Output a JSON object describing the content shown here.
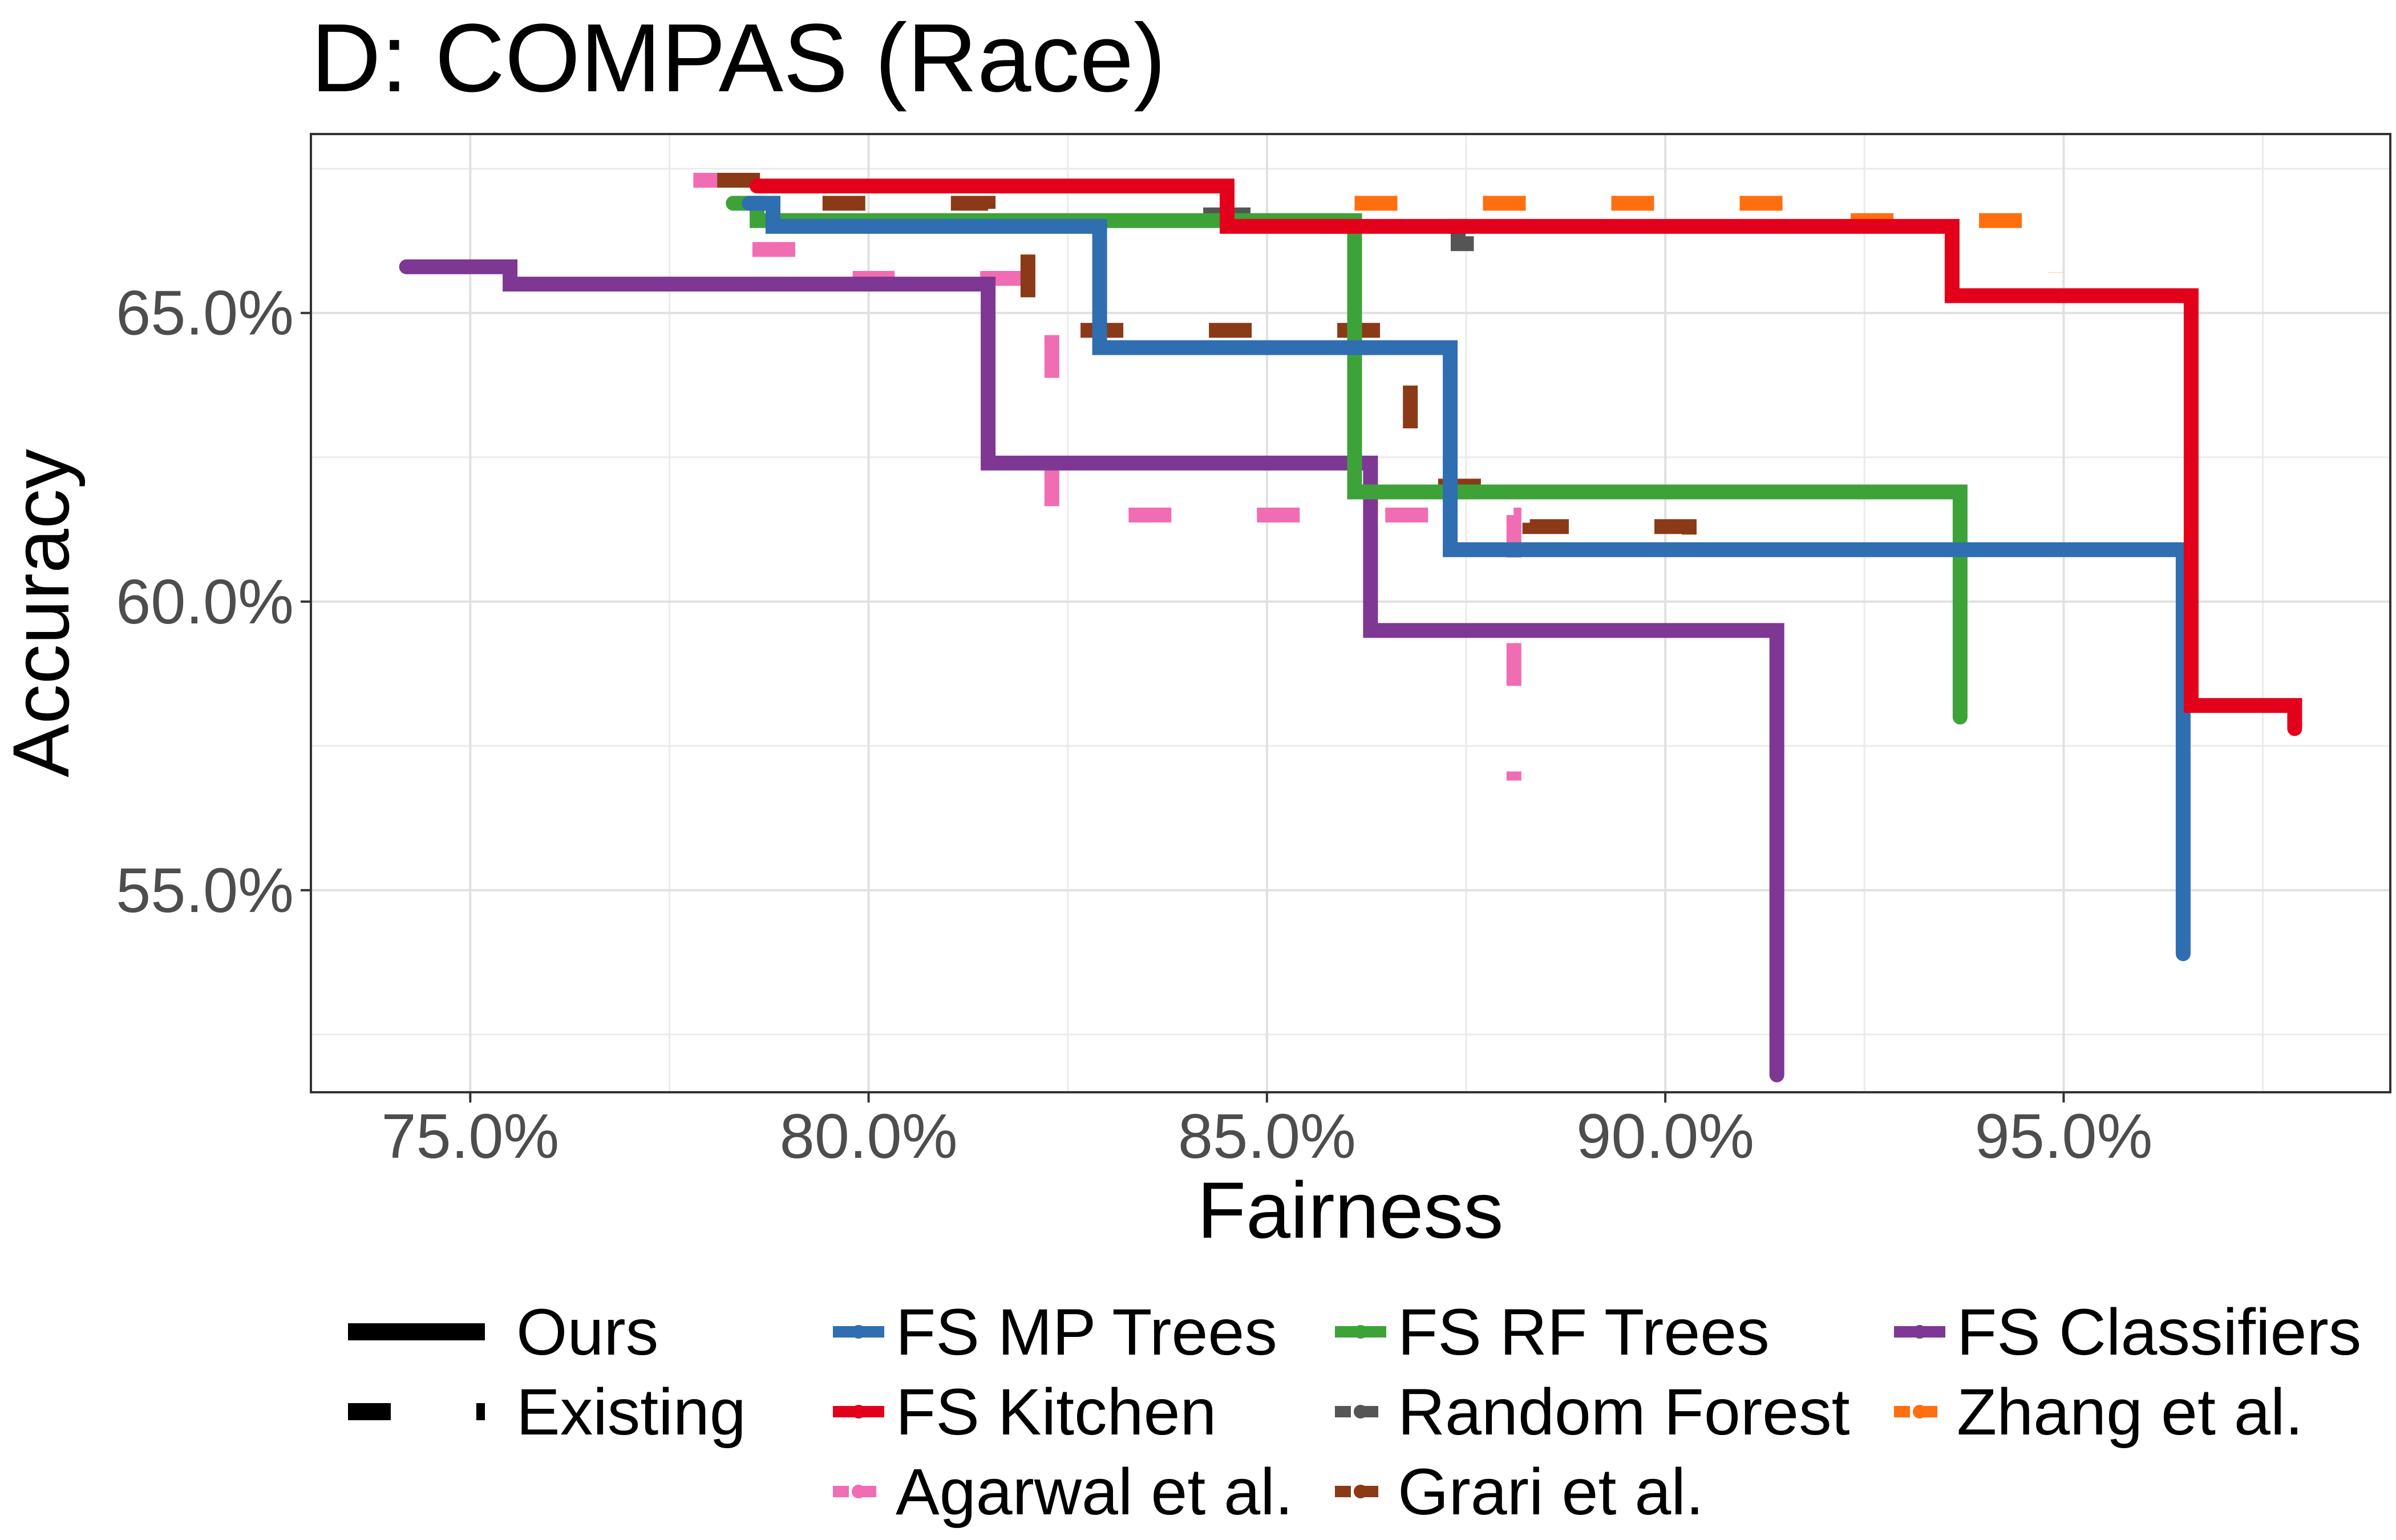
{
  "title": "D: COMPAS (Race)",
  "chart_data": {
    "type": "line",
    "step": true,
    "xlabel": "Fairness",
    "ylabel": "Accuracy",
    "xlim": [
      73.0,
      99.1
    ],
    "ylim": [
      51.5,
      68.1
    ],
    "x_ticks": [
      75,
      80,
      85,
      90,
      95
    ],
    "x_tick_labels": [
      "75.0%",
      "80.0%",
      "85.0%",
      "90.0%",
      "95.0%"
    ],
    "y_ticks": [
      55,
      60,
      65
    ],
    "y_tick_labels": [
      "55.0%",
      "60.0%",
      "65.0%"
    ],
    "grid": true,
    "legend_position": "bottom",
    "linetype_legend": [
      {
        "label": "Ours",
        "style": "solid"
      },
      {
        "label": "Existing",
        "style": "dashed"
      }
    ],
    "series": [
      {
        "name": "FS MP Trees",
        "color": "#2f6eb0",
        "style": "solid",
        "points": [
          [
            78.5,
            66.9
          ],
          [
            78.8,
            66.9
          ],
          [
            78.8,
            66.5
          ],
          [
            82.9,
            66.5
          ],
          [
            82.9,
            64.4
          ],
          [
            87.3,
            64.4
          ],
          [
            87.3,
            60.9
          ],
          [
            96.5,
            60.9
          ],
          [
            96.5,
            53.9
          ]
        ]
      },
      {
        "name": "FS Kitchen",
        "color": "#e3001b",
        "style": "solid",
        "points": [
          [
            78.6,
            67.2
          ],
          [
            84.5,
            67.2
          ],
          [
            84.5,
            66.5
          ],
          [
            93.6,
            66.5
          ],
          [
            93.6,
            65.3
          ],
          [
            96.6,
            65.3
          ],
          [
            96.6,
            58.2
          ],
          [
            97.9,
            58.2
          ],
          [
            97.9,
            57.8
          ]
        ]
      },
      {
        "name": "FS RF Trees",
        "color": "#3da339",
        "style": "solid",
        "points": [
          [
            78.3,
            66.9
          ],
          [
            78.6,
            66.9
          ],
          [
            78.6,
            66.6
          ],
          [
            86.1,
            66.6
          ],
          [
            86.1,
            61.9
          ],
          [
            93.7,
            61.9
          ],
          [
            93.7,
            58.0
          ]
        ]
      },
      {
        "name": "FS Classifiers",
        "color": "#7e3793",
        "style": "solid",
        "points": [
          [
            74.2,
            65.8
          ],
          [
            75.5,
            65.8
          ],
          [
            75.5,
            65.5
          ],
          [
            81.5,
            65.5
          ],
          [
            81.5,
            62.4
          ],
          [
            86.3,
            62.4
          ],
          [
            86.3,
            59.5
          ],
          [
            91.4,
            59.5
          ],
          [
            91.4,
            51.8
          ]
        ]
      },
      {
        "name": "Random Forest",
        "color": "#555555",
        "style": "dashed",
        "points": [
          [
            84.2,
            66.7
          ],
          [
            84.7,
            66.7
          ],
          [
            84.7,
            66.5
          ],
          [
            87.4,
            66.5
          ],
          [
            87.4,
            66.2
          ],
          [
            87.6,
            66.2
          ],
          [
            87.6,
            65.6
          ]
        ]
      },
      {
        "name": "Zhang et al.",
        "color": "#ff6f0f",
        "style": "dashed",
        "points": [
          [
            86.1,
            66.9
          ],
          [
            91.6,
            66.9
          ],
          [
            91.6,
            66.8
          ],
          [
            92.3,
            66.8
          ],
          [
            92.3,
            66.6
          ],
          [
            94.8,
            66.6
          ],
          [
            94.8,
            66.0
          ],
          [
            94.9,
            66.0
          ],
          [
            94.9,
            65.7
          ]
        ]
      },
      {
        "name": "Agarwal et al.",
        "color": "#f06db4",
        "style": "dashed",
        "points": [
          [
            77.8,
            67.3
          ],
          [
            78.5,
            67.3
          ],
          [
            78.5,
            66.1
          ],
          [
            79.8,
            66.1
          ],
          [
            79.8,
            65.6
          ],
          [
            82.3,
            65.6
          ],
          [
            82.3,
            61.5
          ],
          [
            88.1,
            61.5
          ],
          [
            88.1,
            56.9
          ]
        ]
      },
      {
        "name": "Grari et al.",
        "color": "#8b3a17",
        "style": "dashed",
        "points": [
          [
            78.1,
            67.3
          ],
          [
            78.9,
            67.3
          ],
          [
            78.9,
            66.9
          ],
          [
            81.5,
            66.9
          ],
          [
            81.5,
            66.1
          ],
          [
            82.0,
            66.1
          ],
          [
            82.0,
            64.7
          ],
          [
            86.8,
            64.7
          ],
          [
            86.8,
            62.0
          ],
          [
            88.3,
            62.0
          ],
          [
            88.3,
            61.3
          ],
          [
            90.3,
            61.3
          ],
          [
            90.3,
            60.5
          ]
        ]
      }
    ]
  }
}
